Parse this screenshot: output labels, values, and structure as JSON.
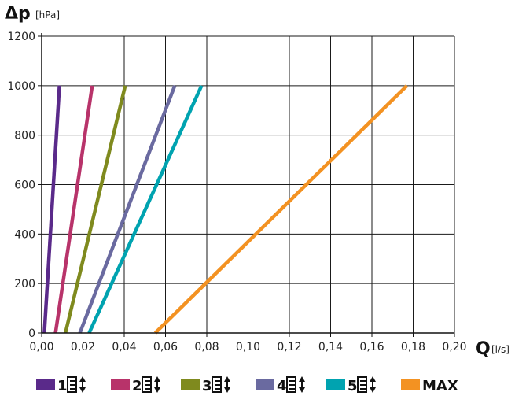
{
  "chart_data": {
    "type": "line",
    "ylabel": "Δp",
    "ylabel_unit": "[hPa]",
    "xlabel": "Q",
    "xlabel_unit": "[l/s]",
    "xlim": [
      0,
      0.2
    ],
    "ylim": [
      0,
      1200
    ],
    "x_ticks": [
      0,
      0.02,
      0.04,
      0.06,
      0.08,
      0.1,
      0.12,
      0.14,
      0.16,
      0.18,
      0.2
    ],
    "x_tick_labels": [
      "0,00",
      "0,02",
      "0,04",
      "0,06",
      "0,08",
      "0,10",
      "0,12",
      "0,14",
      "0,16",
      "0,18",
      "0,20"
    ],
    "y_ticks": [
      0,
      200,
      400,
      600,
      800,
      1000,
      1200
    ],
    "y_tick_labels": [
      "0",
      "200",
      "400",
      "600",
      "800",
      "1000",
      "1200"
    ],
    "grid": true,
    "legend_position": "bottom",
    "series": [
      {
        "name": "1",
        "icon": "drawer-updown-icon",
        "color": "#5a2a8a",
        "x": [
          0.0013,
          0.0086
        ],
        "y": [
          0,
          1000
        ]
      },
      {
        "name": "2",
        "icon": "drawer-updown-icon",
        "color": "#b8336a",
        "x": [
          0.0067,
          0.0245
        ],
        "y": [
          0,
          1000
        ]
      },
      {
        "name": "3",
        "icon": "drawer-updown-icon",
        "color": "#7f8a1e",
        "x": [
          0.0115,
          0.0405
        ],
        "y": [
          0,
          1000
        ]
      },
      {
        "name": "4",
        "icon": "drawer-updown-icon",
        "color": "#6a6aa0",
        "x": [
          0.0185,
          0.0645
        ],
        "y": [
          0,
          1000
        ]
      },
      {
        "name": "5",
        "icon": "drawer-updown-icon",
        "color": "#00a3b0",
        "x": [
          0.023,
          0.0775
        ],
        "y": [
          0,
          1000
        ]
      },
      {
        "name": "MAX",
        "icon": "",
        "color": "#f39222",
        "x": [
          0.055,
          0.177
        ],
        "y": [
          0,
          1000
        ]
      }
    ]
  }
}
